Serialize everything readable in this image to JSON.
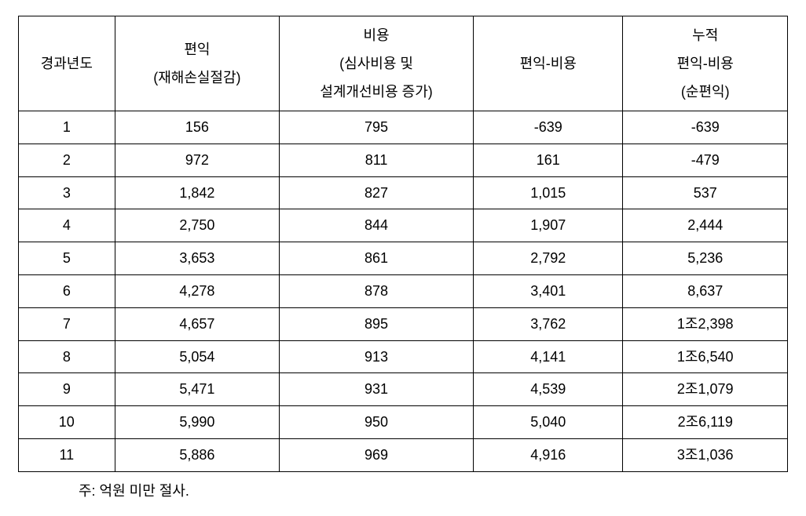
{
  "table": {
    "headers": {
      "col0_line1": "경과년도",
      "col1_line1": "편익",
      "col1_line2": "(재해손실절감)",
      "col2_line1": "비용",
      "col2_line2": "(심사비용 및",
      "col2_line3": "설계개선비용 증가)",
      "col3_line1": "편익-비용",
      "col4_line1": "누적",
      "col4_line2": "편익-비용",
      "col4_line3": "(순편익)"
    },
    "rows": [
      {
        "year": "1",
        "benefit": "156",
        "cost": "795",
        "diff": "-639",
        "cumul": "-639"
      },
      {
        "year": "2",
        "benefit": "972",
        "cost": "811",
        "diff": "161",
        "cumul": "-479"
      },
      {
        "year": "3",
        "benefit": "1,842",
        "cost": "827",
        "diff": "1,015",
        "cumul": "537"
      },
      {
        "year": "4",
        "benefit": "2,750",
        "cost": "844",
        "diff": "1,907",
        "cumul": "2,444"
      },
      {
        "year": "5",
        "benefit": "3,653",
        "cost": "861",
        "diff": "2,792",
        "cumul": "5,236"
      },
      {
        "year": "6",
        "benefit": "4,278",
        "cost": "878",
        "diff": "3,401",
        "cumul": "8,637"
      },
      {
        "year": "7",
        "benefit": "4,657",
        "cost": "895",
        "diff": "3,762",
        "cumul": "1조2,398"
      },
      {
        "year": "8",
        "benefit": "5,054",
        "cost": "913",
        "diff": "4,141",
        "cumul": "1조6,540"
      },
      {
        "year": "9",
        "benefit": "5,471",
        "cost": "931",
        "diff": "4,539",
        "cumul": "2조1,079"
      },
      {
        "year": "10",
        "benefit": "5,990",
        "cost": "950",
        "diff": "5,040",
        "cumul": "2조6,119"
      },
      {
        "year": "11",
        "benefit": "5,886",
        "cost": "969",
        "diff": "4,916",
        "cumul": "3조1,036"
      }
    ]
  },
  "footnote": "주: 억원 미만 절사."
}
